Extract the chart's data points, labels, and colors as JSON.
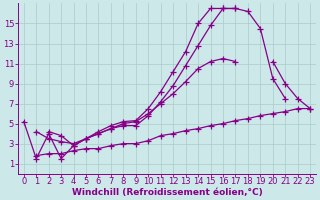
{
  "background_color": "#cce8e8",
  "grid_color": "#aacccc",
  "line_color": "#880088",
  "marker": "+",
  "marker_size": 4,
  "line_width": 0.9,
  "xlabel": "Windchill (Refroidissement éolien,°C)",
  "xlabel_fontsize": 6.5,
  "tick_fontsize": 6,
  "xlim": [
    -0.5,
    23.5
  ],
  "ylim": [
    0,
    17
  ],
  "xticks": [
    0,
    1,
    2,
    3,
    4,
    5,
    6,
    7,
    8,
    9,
    10,
    11,
    12,
    13,
    14,
    15,
    16,
    17,
    18,
    19,
    20,
    21,
    22,
    23
  ],
  "yticks": [
    1,
    3,
    5,
    7,
    9,
    11,
    13,
    15
  ],
  "series": [
    {
      "x": [
        0,
        1,
        2,
        3,
        4,
        5,
        6,
        7,
        8,
        9,
        10,
        11,
        12,
        13,
        14,
        15,
        16,
        17,
        18,
        19,
        20,
        21
      ],
      "y": [
        5.2,
        1.5,
        4.0,
        1.5,
        2.8,
        3.5,
        4.2,
        4.8,
        5.2,
        5.3,
        6.5,
        8.2,
        10.2,
        12.2,
        15.0,
        16.5,
        16.5,
        16.5,
        16.2,
        14.5,
        9.5,
        7.5
      ]
    },
    {
      "x": [
        2,
        3,
        4,
        5,
        6,
        7,
        8,
        9,
        10,
        11,
        12,
        13,
        14,
        15,
        16,
        17
      ],
      "y": [
        4.2,
        3.8,
        2.8,
        3.5,
        4.0,
        4.5,
        4.8,
        4.8,
        5.8,
        7.2,
        8.8,
        10.8,
        12.8,
        14.8,
        16.5,
        16.5
      ]
    },
    {
      "x": [
        1,
        2,
        3,
        4,
        5,
        6,
        7,
        8,
        9,
        10,
        11,
        12,
        13,
        14,
        15,
        16,
        17,
        18,
        19,
        20,
        21,
        22,
        23
      ],
      "y": [
        4.2,
        3.5,
        3.2,
        3.0,
        3.5,
        4.0,
        4.5,
        5.0,
        5.2,
        6.0,
        7.0,
        8.0,
        9.2,
        10.5,
        11.2,
        11.5,
        11.2,
        null,
        null,
        null,
        null,
        null,
        null
      ]
    },
    {
      "x": [
        17,
        18,
        19,
        20,
        21,
        22,
        23
      ],
      "y": [
        null,
        null,
        null,
        11.2,
        9.0,
        7.5,
        6.5
      ]
    },
    {
      "x": [
        1,
        2,
        3,
        4,
        5,
        6,
        7,
        8,
        9,
        10,
        11,
        12,
        13,
        14,
        15,
        16,
        17,
        18,
        19,
        20,
        21,
        22,
        23
      ],
      "y": [
        1.8,
        2.0,
        2.0,
        2.3,
        2.5,
        2.5,
        2.8,
        3.0,
        3.0,
        3.3,
        3.8,
        4.0,
        4.3,
        4.5,
        4.8,
        5.0,
        5.3,
        5.5,
        5.8,
        6.0,
        6.2,
        6.5,
        6.5
      ]
    }
  ]
}
